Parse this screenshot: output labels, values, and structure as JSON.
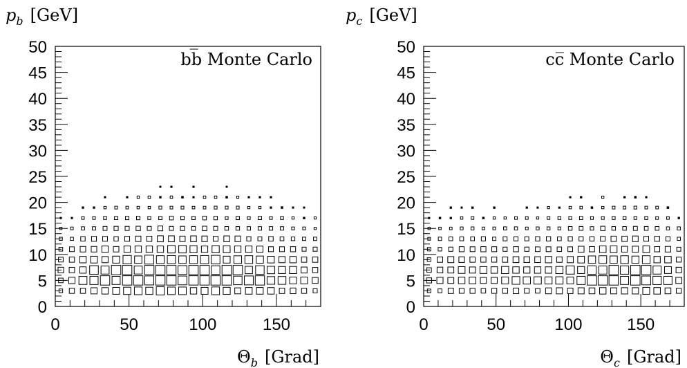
{
  "chart_data": [
    {
      "type": "heatmap",
      "panel": "left",
      "y_title_main": "p",
      "y_title_sub": "b",
      "y_title_unit": "[GeV]",
      "x_title_main": "Θ",
      "x_title_sub": "b",
      "x_title_unit": "[Grad]",
      "annotation": "bb̅ Monte Carlo",
      "xlim": [
        0,
        180
      ],
      "ylim": [
        0,
        50
      ],
      "x_ticks": [
        0,
        50,
        100,
        150
      ],
      "y_ticks": [
        0,
        5,
        10,
        15,
        20,
        25,
        30,
        35,
        40,
        45,
        50
      ],
      "x_tick_labels": [
        "0",
        "50",
        "100",
        "150"
      ],
      "y_tick_labels": [
        "0",
        "5",
        "10",
        "15",
        "20",
        "25",
        "30",
        "35",
        "40",
        "45",
        "50"
      ],
      "bin_width_x": 7.5,
      "bin_width_y": 2,
      "peak_x": [
        60,
        110
      ],
      "peak_y": 5.5,
      "max_box_fraction_of_bin": 0.9
    },
    {
      "type": "heatmap",
      "panel": "right",
      "y_title_main": "p",
      "y_title_sub": "c",
      "y_title_unit": "[GeV]",
      "x_title_main": "Θ",
      "x_title_sub": "c",
      "x_title_unit": "[Grad]",
      "annotation": "cc̅ Monte Carlo",
      "xlim": [
        0,
        180
      ],
      "ylim": [
        0,
        50
      ],
      "x_ticks": [
        0,
        50,
        100,
        150
      ],
      "y_ticks": [
        0,
        5,
        10,
        15,
        20,
        25,
        30,
        35,
        40,
        45,
        50
      ],
      "x_tick_labels": [
        "0",
        "50",
        "100",
        "150"
      ],
      "y_tick_labels": [
        "0",
        "5",
        "10",
        "15",
        "20",
        "25",
        "30",
        "35",
        "40",
        "45",
        "50"
      ],
      "bin_width_x": 7.5,
      "bin_width_y": 2,
      "peak_x": [
        140
      ],
      "peak_y": 5.5,
      "max_box_fraction_of_bin": 0.9
    }
  ]
}
